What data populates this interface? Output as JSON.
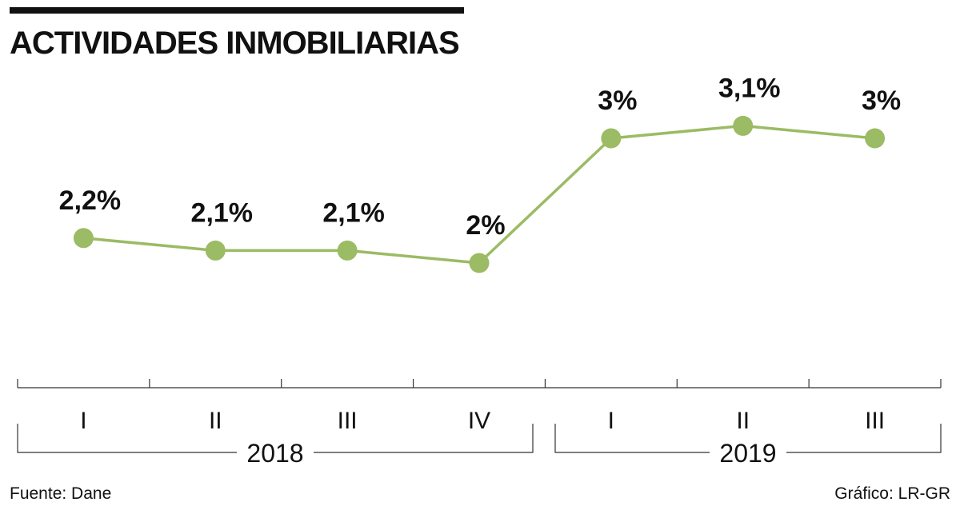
{
  "title": "ACTIVIDADES INMOBILIARIAS",
  "source": "Fuente: Dane",
  "credit": "Gráfico: LR-GR",
  "colors": {
    "line": "#9bbb64",
    "marker": "#9bbb64",
    "text": "#111111",
    "axis": "#333333"
  },
  "chart_data": {
    "type": "line",
    "title": "ACTIVIDADES INMOBILIARIAS",
    "xlabel": "",
    "ylabel": "",
    "categories": [
      "I",
      "II",
      "III",
      "IV",
      "I",
      "II",
      "III"
    ],
    "groups": [
      {
        "label": "2018",
        "quarters": [
          "I",
          "II",
          "III",
          "IV"
        ]
      },
      {
        "label": "2019",
        "quarters": [
          "I",
          "II",
          "III"
        ]
      }
    ],
    "series": [
      {
        "name": "Actividades inmobiliarias",
        "values": [
          2.2,
          2.1,
          2.1,
          2.0,
          3.0,
          3.1,
          3.0
        ],
        "data_labels": [
          "2,2%",
          "2,1%",
          "2,1%",
          "2%",
          "3%",
          "3,1%",
          "3%"
        ]
      }
    ],
    "ylim": [
      0,
      3.6
    ],
    "grid": false,
    "legend": "none"
  }
}
